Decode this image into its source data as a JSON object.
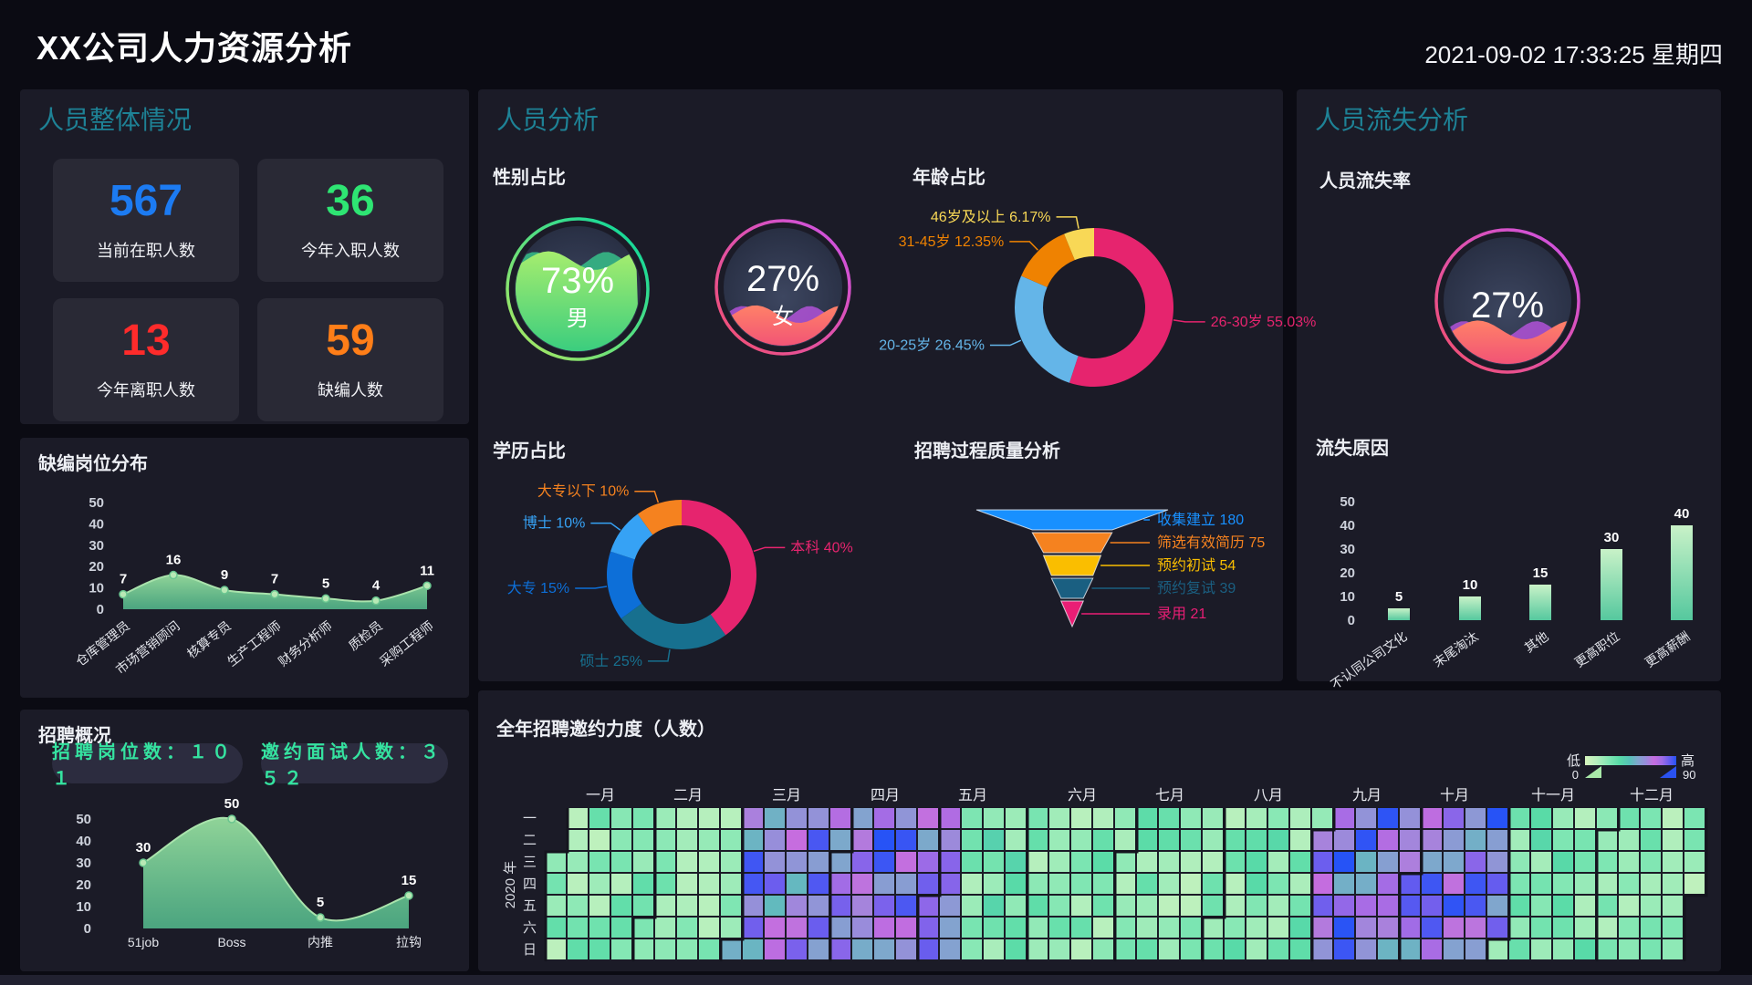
{
  "page": {
    "title": "XX公司人力资源分析",
    "datetime": "2021-09-02 17:33:25 星期四"
  },
  "panels": {
    "overview": {
      "header": "人员整体情况"
    },
    "recruit": {
      "header": "招聘概况",
      "badges": [
        {
          "text": "招聘岗位数：１０１"
        },
        {
          "text": "邀约面试人数：３５２"
        }
      ]
    },
    "analysis": {
      "header": "人员分析"
    },
    "attrition": {
      "header": "人员流失分析"
    }
  },
  "stats": [
    {
      "value": "567",
      "label": "当前在职人数",
      "color": "#1c7bf2"
    },
    {
      "value": "36",
      "label": "今年入职人数",
      "color": "#2ee573"
    },
    {
      "value": "13",
      "label": "今年离职人数",
      "color": "#fe2b2b"
    },
    {
      "value": "59",
      "label": "缺编人数",
      "color": "#ff7e18"
    }
  ],
  "chart_data": [
    {
      "id": "vacancy",
      "type": "area",
      "title": "缺编岗位分布",
      "categories": [
        "仓库管理员",
        "市场营销顾问",
        "核算专员",
        "生产工程师",
        "财务分析师",
        "质检员",
        "采购工程师"
      ],
      "values": [
        7,
        16,
        9,
        7,
        5,
        4,
        11
      ],
      "ylim": [
        0,
        50
      ],
      "yticks": [
        0,
        10,
        20,
        30,
        40,
        50
      ],
      "area_color": "#6fcf97",
      "grid": false
    },
    {
      "id": "gender",
      "type": "liquid",
      "title": "性别占比",
      "series": [
        {
          "name": "男",
          "pct": 73,
          "theme": "green"
        },
        {
          "name": "女",
          "pct": 27,
          "theme": "pink"
        }
      ]
    },
    {
      "id": "age",
      "type": "donut",
      "title": "年龄占比",
      "slices": [
        {
          "label": "26-30岁",
          "pct": 55.03,
          "color": "#e6246e"
        },
        {
          "label": "20-25岁",
          "pct": 26.45,
          "color": "#64b5e8"
        },
        {
          "label": "31-45岁",
          "pct": 12.35,
          "color": "#ef8201"
        },
        {
          "label": "46岁及以上",
          "pct": 6.17,
          "color": "#f8d856"
        }
      ]
    },
    {
      "id": "education",
      "type": "donut",
      "title": "学历占比",
      "slices": [
        {
          "label": "本科",
          "pct": 40,
          "color": "#e6246e"
        },
        {
          "label": "硕士",
          "pct": 25,
          "color": "#17708f"
        },
        {
          "label": "大专",
          "pct": 15,
          "color": "#0d6fd8"
        },
        {
          "label": "博士",
          "pct": 10,
          "color": "#36a2f5"
        },
        {
          "label": "大专以下",
          "pct": 10,
          "color": "#f5821f"
        }
      ]
    },
    {
      "id": "funnel",
      "type": "funnel",
      "title": "招聘过程质量分析",
      "stages": [
        {
          "label": "收集建立",
          "value": 180,
          "color": "#1890ff"
        },
        {
          "label": "筛选有效简历",
          "value": 75,
          "color": "#f5821f"
        },
        {
          "label": "预约初试",
          "value": 54,
          "color": "#fabe00"
        },
        {
          "label": "预约复试",
          "value": 39,
          "color": "#1a5f81"
        },
        {
          "label": "录用",
          "value": 21,
          "color": "#e91e75"
        }
      ]
    },
    {
      "id": "recruit_channels",
      "type": "area",
      "title": "",
      "categories": [
        "51job",
        "Boss",
        "内推",
        "拉钩"
      ],
      "values": [
        30,
        50,
        5,
        15
      ],
      "ylim": [
        0,
        50
      ],
      "yticks": [
        0,
        10,
        20,
        30,
        40,
        50
      ],
      "area_color": "#6fcf97",
      "grid": false
    },
    {
      "id": "attrition_rate",
      "type": "liquid",
      "title": "人员流失率",
      "series": [
        {
          "name": "",
          "pct": 27,
          "theme": "pink"
        }
      ]
    },
    {
      "id": "attrition_reasons",
      "type": "bar",
      "title": "流失原因",
      "categories": [
        "不认同公司文化",
        "末尾淘汰",
        "其他",
        "更高职位",
        "更高薪酬"
      ],
      "values": [
        5,
        10,
        15,
        30,
        40
      ],
      "ylim": [
        0,
        50
      ],
      "yticks": [
        0,
        10,
        20,
        30,
        40,
        50
      ],
      "bar_colors": [
        "#c9f2c8",
        "#55c89e"
      ]
    },
    {
      "id": "invite_heatmap",
      "type": "heatmap",
      "title": "全年招聘邀约力度（人数）",
      "year_label": "2020 年",
      "weekday_labels": [
        "一",
        "二",
        "三",
        "四",
        "五",
        "六",
        "日"
      ],
      "month_labels": [
        "一月",
        "二月",
        "三月",
        "四月",
        "五月",
        "六月",
        "七月",
        "八月",
        "九月",
        "十月",
        "十一月",
        "十二月"
      ],
      "legend": {
        "low_label": "低",
        "high_label": "高",
        "min": 0,
        "max": 90
      },
      "first_weekday_index": 2,
      "days_in_month": [
        31,
        29,
        31,
        30,
        31,
        30,
        31,
        31,
        30,
        31,
        30,
        31
      ],
      "month_value_ranges": [
        [
          8,
          32
        ],
        [
          8,
          30
        ],
        [
          46,
          90
        ],
        [
          50,
          90
        ],
        [
          12,
          38
        ],
        [
          10,
          35
        ],
        [
          8,
          34
        ],
        [
          10,
          36
        ],
        [
          48,
          90
        ],
        [
          48,
          90
        ],
        [
          10,
          36
        ],
        [
          8,
          30
        ]
      ],
      "early_override": {
        "month_index": 4,
        "through_day": 10,
        "range": [
          50,
          88
        ]
      },
      "color_stops": [
        [
          0,
          "#d7f5bd"
        ],
        [
          12,
          "#b4efbd"
        ],
        [
          24,
          "#7fe6b3"
        ],
        [
          34,
          "#58dba7"
        ],
        [
          44,
          "#56c2b8"
        ],
        [
          52,
          "#7fa7cd"
        ],
        [
          60,
          "#988ddb"
        ],
        [
          68,
          "#c66ddf"
        ],
        [
          76,
          "#a06ce6"
        ],
        [
          84,
          "#5f5af0"
        ],
        [
          90,
          "#2453f6"
        ]
      ]
    }
  ]
}
